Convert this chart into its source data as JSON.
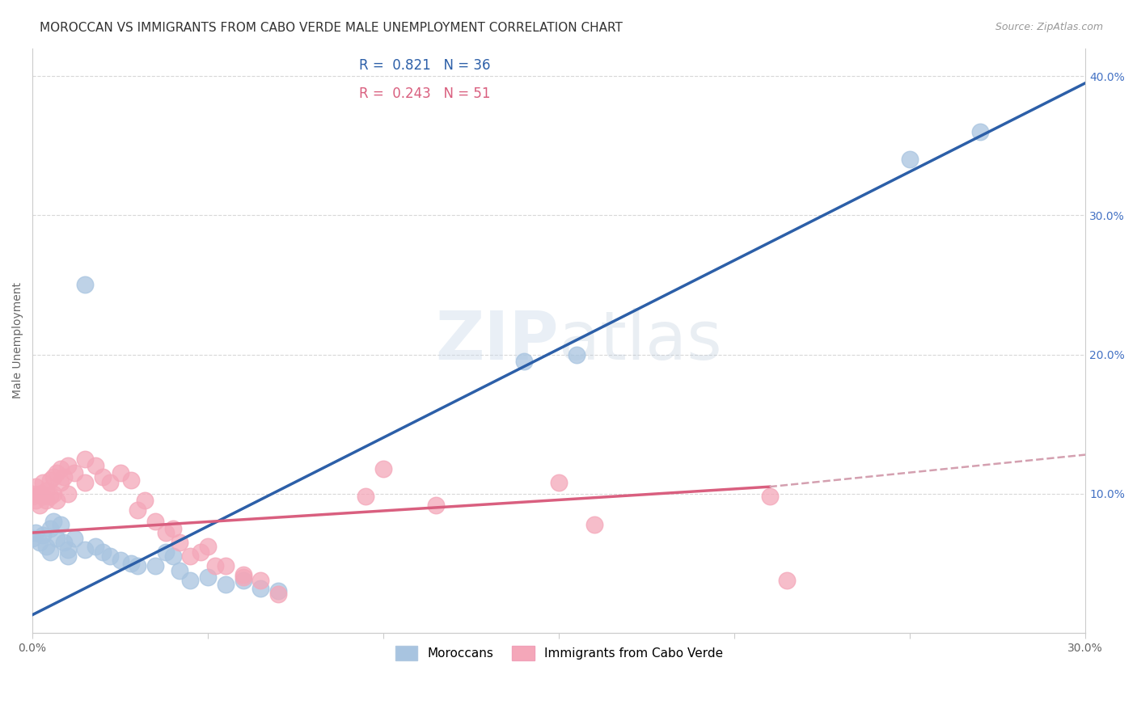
{
  "title": "MOROCCAN VS IMMIGRANTS FROM CABO VERDE MALE UNEMPLOYMENT CORRELATION CHART",
  "source": "Source: ZipAtlas.com",
  "ylabel": "Male Unemployment",
  "xlim": [
    0.0,
    0.3
  ],
  "ylim": [
    0.0,
    0.42
  ],
  "xticks": [
    0.0,
    0.05,
    0.1,
    0.15,
    0.2,
    0.25,
    0.3
  ],
  "xtick_labels": [
    "0.0%",
    "",
    "",
    "",
    "",
    "",
    "30.0%"
  ],
  "yticks_right": [
    0.0,
    0.1,
    0.2,
    0.3,
    0.4
  ],
  "ytick_labels_right": [
    "",
    "10.0%",
    "20.0%",
    "30.0%",
    "40.0%"
  ],
  "moroccan_color": "#a8c4e0",
  "cabo_verde_color": "#f4a7b9",
  "moroccan_line_color": "#2c5fa8",
  "cabo_verde_line_color": "#d95f7f",
  "cabo_verde_dashed_color": "#d4a0b0",
  "legend_box_color_moroccan": "#c5dcf0",
  "legend_box_color_cabo": "#f9c4d2",
  "R_moroccan": 0.821,
  "N_moroccan": 36,
  "R_cabo": 0.243,
  "N_cabo": 51,
  "watermark": "ZIPatlas",
  "moroccan_line": {
    "x0": 0.0,
    "y0": 0.013,
    "x1": 0.3,
    "y1": 0.395
  },
  "cabo_line_solid": {
    "x0": 0.0,
    "y0": 0.072,
    "x1": 0.21,
    "y1": 0.105
  },
  "cabo_line_dashed": {
    "x0": 0.21,
    "y0": 0.105,
    "x1": 0.3,
    "y1": 0.128
  },
  "moroccan_points": [
    [
      0.0,
      0.068
    ],
    [
      0.001,
      0.072
    ],
    [
      0.002,
      0.065
    ],
    [
      0.003,
      0.07
    ],
    [
      0.004,
      0.062
    ],
    [
      0.005,
      0.058
    ],
    [
      0.005,
      0.075
    ],
    [
      0.006,
      0.08
    ],
    [
      0.007,
      0.068
    ],
    [
      0.008,
      0.078
    ],
    [
      0.009,
      0.065
    ],
    [
      0.01,
      0.06
    ],
    [
      0.01,
      0.055
    ],
    [
      0.012,
      0.068
    ],
    [
      0.015,
      0.06
    ],
    [
      0.018,
      0.062
    ],
    [
      0.02,
      0.058
    ],
    [
      0.022,
      0.055
    ],
    [
      0.025,
      0.052
    ],
    [
      0.028,
      0.05
    ],
    [
      0.03,
      0.048
    ],
    [
      0.035,
      0.048
    ],
    [
      0.038,
      0.058
    ],
    [
      0.04,
      0.055
    ],
    [
      0.042,
      0.045
    ],
    [
      0.045,
      0.038
    ],
    [
      0.05,
      0.04
    ],
    [
      0.055,
      0.035
    ],
    [
      0.06,
      0.038
    ],
    [
      0.065,
      0.032
    ],
    [
      0.07,
      0.03
    ],
    [
      0.015,
      0.25
    ],
    [
      0.14,
      0.195
    ],
    [
      0.155,
      0.2
    ],
    [
      0.25,
      0.34
    ],
    [
      0.27,
      0.36
    ]
  ],
  "cabo_verde_points": [
    [
      0.0,
      0.1
    ],
    [
      0.0,
      0.098
    ],
    [
      0.001,
      0.095
    ],
    [
      0.001,
      0.105
    ],
    [
      0.002,
      0.092
    ],
    [
      0.002,
      0.1
    ],
    [
      0.003,
      0.098
    ],
    [
      0.003,
      0.108
    ],
    [
      0.004,
      0.102
    ],
    [
      0.004,
      0.095
    ],
    [
      0.005,
      0.11
    ],
    [
      0.005,
      0.098
    ],
    [
      0.006,
      0.112
    ],
    [
      0.006,
      0.1
    ],
    [
      0.007,
      0.095
    ],
    [
      0.007,
      0.115
    ],
    [
      0.008,
      0.108
    ],
    [
      0.008,
      0.118
    ],
    [
      0.009,
      0.112
    ],
    [
      0.01,
      0.12
    ],
    [
      0.01,
      0.1
    ],
    [
      0.012,
      0.115
    ],
    [
      0.015,
      0.125
    ],
    [
      0.015,
      0.108
    ],
    [
      0.018,
      0.12
    ],
    [
      0.02,
      0.112
    ],
    [
      0.022,
      0.108
    ],
    [
      0.025,
      0.115
    ],
    [
      0.028,
      0.11
    ],
    [
      0.03,
      0.088
    ],
    [
      0.032,
      0.095
    ],
    [
      0.035,
      0.08
    ],
    [
      0.038,
      0.072
    ],
    [
      0.04,
      0.075
    ],
    [
      0.042,
      0.065
    ],
    [
      0.045,
      0.055
    ],
    [
      0.048,
      0.058
    ],
    [
      0.05,
      0.062
    ],
    [
      0.052,
      0.048
    ],
    [
      0.055,
      0.048
    ],
    [
      0.06,
      0.04
    ],
    [
      0.06,
      0.042
    ],
    [
      0.065,
      0.038
    ],
    [
      0.07,
      0.028
    ],
    [
      0.095,
      0.098
    ],
    [
      0.1,
      0.118
    ],
    [
      0.115,
      0.092
    ],
    [
      0.15,
      0.108
    ],
    [
      0.16,
      0.078
    ],
    [
      0.21,
      0.098
    ],
    [
      0.215,
      0.038
    ]
  ],
  "background_color": "#ffffff",
  "grid_color": "#d8d8d8",
  "title_fontsize": 11,
  "axis_label_fontsize": 10
}
